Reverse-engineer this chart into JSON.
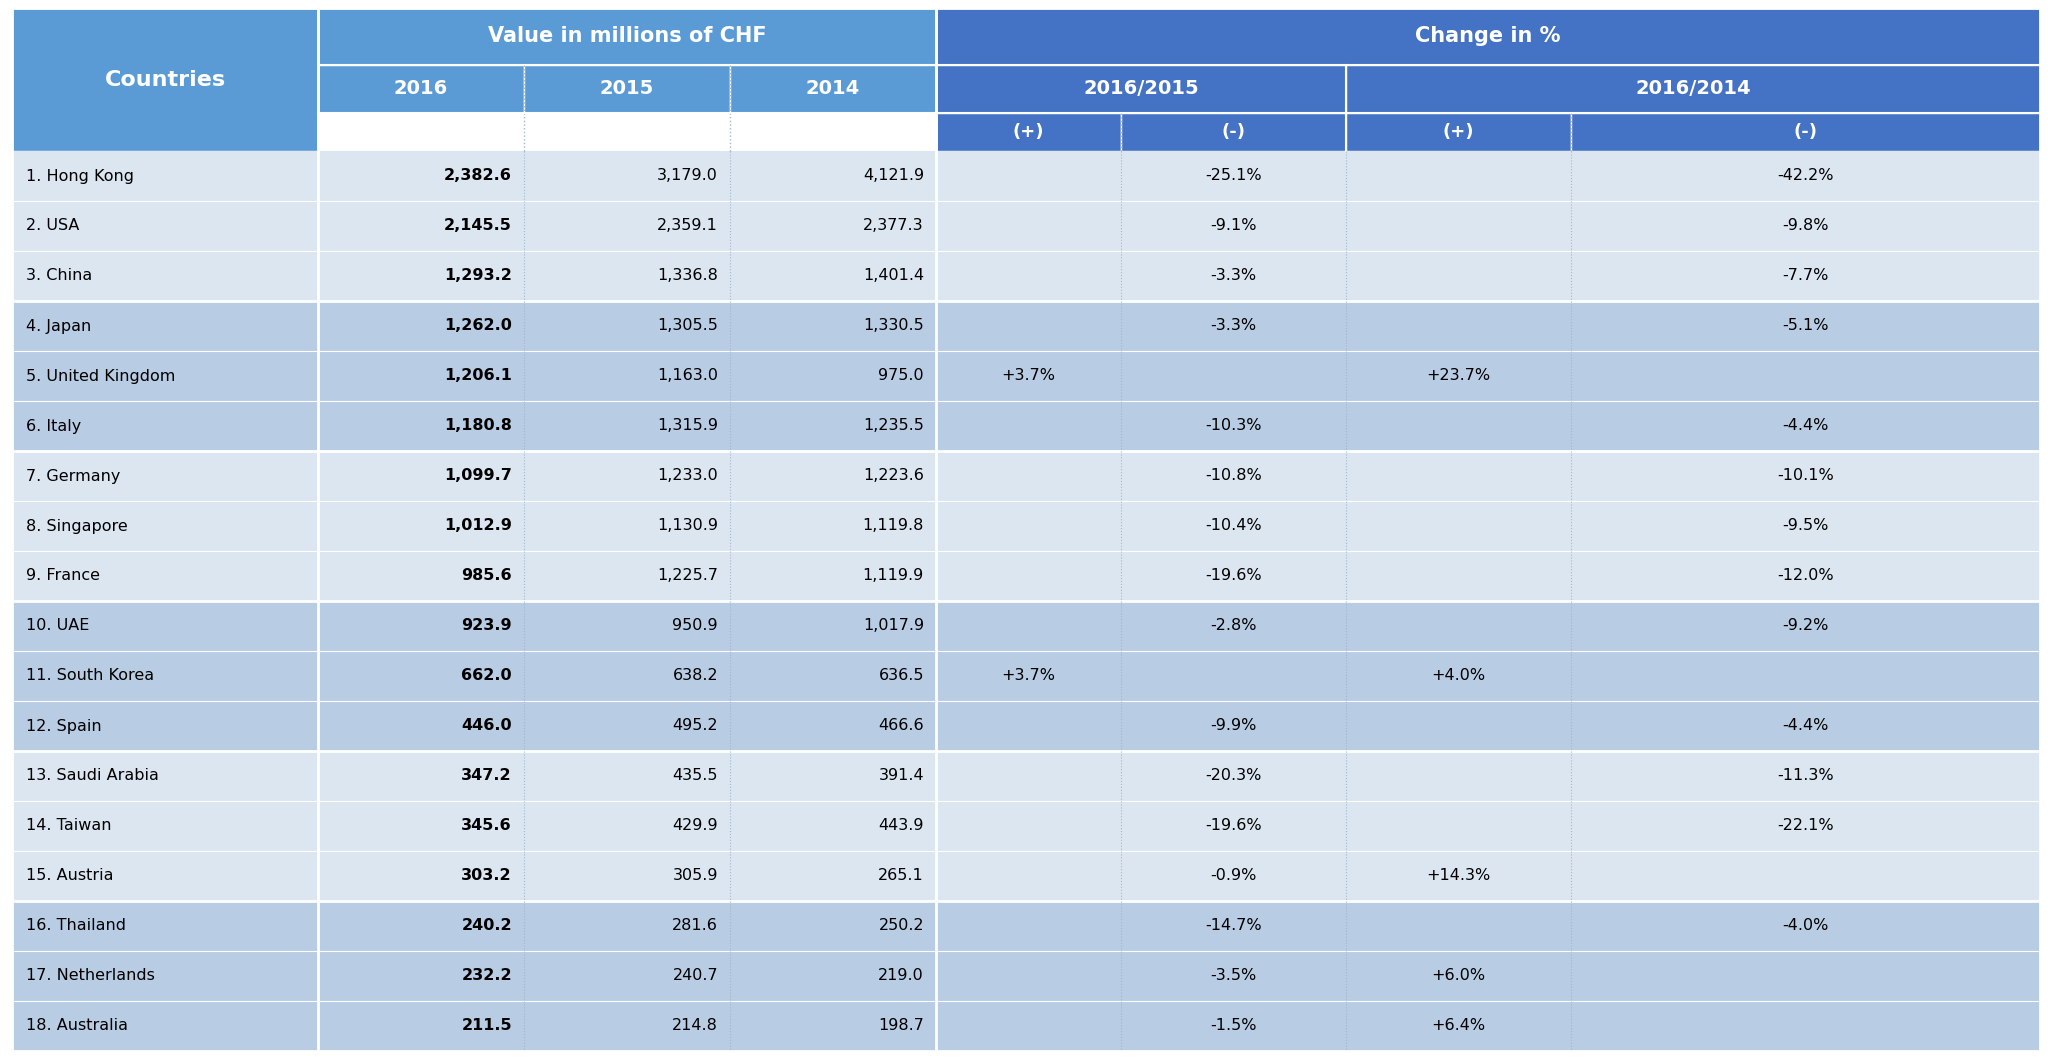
{
  "rows": [
    {
      "country": "1. Hong Kong",
      "v2016": "2,382.6",
      "v2015": "3,179.0",
      "v2014": "4,121.9",
      "ch15_pos": "",
      "ch15_neg": "-25.1%",
      "ch14_pos": "",
      "ch14_neg": "-42.2%",
      "group": 0
    },
    {
      "country": "2. USA",
      "v2016": "2,145.5",
      "v2015": "2,359.1",
      "v2014": "2,377.3",
      "ch15_pos": "",
      "ch15_neg": "-9.1%",
      "ch14_pos": "",
      "ch14_neg": "-9.8%",
      "group": 0
    },
    {
      "country": "3. China",
      "v2016": "1,293.2",
      "v2015": "1,336.8",
      "v2014": "1,401.4",
      "ch15_pos": "",
      "ch15_neg": "-3.3%",
      "ch14_pos": "",
      "ch14_neg": "-7.7%",
      "group": 0
    },
    {
      "country": "4. Japan",
      "v2016": "1,262.0",
      "v2015": "1,305.5",
      "v2014": "1,330.5",
      "ch15_pos": "",
      "ch15_neg": "-3.3%",
      "ch14_pos": "",
      "ch14_neg": "-5.1%",
      "group": 1
    },
    {
      "country": "5. United Kingdom",
      "v2016": "1,206.1",
      "v2015": "1,163.0",
      "v2014": "975.0",
      "ch15_pos": "+3.7%",
      "ch15_neg": "",
      "ch14_pos": "+23.7%",
      "ch14_neg": "",
      "group": 1
    },
    {
      "country": "6. Italy",
      "v2016": "1,180.8",
      "v2015": "1,315.9",
      "v2014": "1,235.5",
      "ch15_pos": "",
      "ch15_neg": "-10.3%",
      "ch14_pos": "",
      "ch14_neg": "-4.4%",
      "group": 1
    },
    {
      "country": "7. Germany",
      "v2016": "1,099.7",
      "v2015": "1,233.0",
      "v2014": "1,223.6",
      "ch15_pos": "",
      "ch15_neg": "-10.8%",
      "ch14_pos": "",
      "ch14_neg": "-10.1%",
      "group": 2
    },
    {
      "country": "8. Singapore",
      "v2016": "1,012.9",
      "v2015": "1,130.9",
      "v2014": "1,119.8",
      "ch15_pos": "",
      "ch15_neg": "-10.4%",
      "ch14_pos": "",
      "ch14_neg": "-9.5%",
      "group": 2
    },
    {
      "country": "9. France",
      "v2016": "985.6",
      "v2015": "1,225.7",
      "v2014": "1,119.9",
      "ch15_pos": "",
      "ch15_neg": "-19.6%",
      "ch14_pos": "",
      "ch14_neg": "-12.0%",
      "group": 2
    },
    {
      "country": "10. UAE",
      "v2016": "923.9",
      "v2015": "950.9",
      "v2014": "1,017.9",
      "ch15_pos": "",
      "ch15_neg": "-2.8%",
      "ch14_pos": "",
      "ch14_neg": "-9.2%",
      "group": 3
    },
    {
      "country": "11. South Korea",
      "v2016": "662.0",
      "v2015": "638.2",
      "v2014": "636.5",
      "ch15_pos": "+3.7%",
      "ch15_neg": "",
      "ch14_pos": "+4.0%",
      "ch14_neg": "",
      "group": 3
    },
    {
      "country": "12. Spain",
      "v2016": "446.0",
      "v2015": "495.2",
      "v2014": "466.6",
      "ch15_pos": "",
      "ch15_neg": "-9.9%",
      "ch14_pos": "",
      "ch14_neg": "-4.4%",
      "group": 3
    },
    {
      "country": "13. Saudi Arabia",
      "v2016": "347.2",
      "v2015": "435.5",
      "v2014": "391.4",
      "ch15_pos": "",
      "ch15_neg": "-20.3%",
      "ch14_pos": "",
      "ch14_neg": "-11.3%",
      "group": 4
    },
    {
      "country": "14. Taiwan",
      "v2016": "345.6",
      "v2015": "429.9",
      "v2014": "443.9",
      "ch15_pos": "",
      "ch15_neg": "-19.6%",
      "ch14_pos": "",
      "ch14_neg": "-22.1%",
      "group": 4
    },
    {
      "country": "15. Austria",
      "v2016": "303.2",
      "v2015": "305.9",
      "v2014": "265.1",
      "ch15_pos": "",
      "ch15_neg": "-0.9%",
      "ch14_pos": "+14.3%",
      "ch14_neg": "",
      "group": 4
    },
    {
      "country": "16. Thailand",
      "v2016": "240.2",
      "v2015": "281.6",
      "v2014": "250.2",
      "ch15_pos": "",
      "ch15_neg": "-14.7%",
      "ch14_pos": "",
      "ch14_neg": "-4.0%",
      "group": 5
    },
    {
      "country": "17. Netherlands",
      "v2016": "232.2",
      "v2015": "240.7",
      "v2014": "219.0",
      "ch15_pos": "",
      "ch15_neg": "-3.5%",
      "ch14_pos": "+6.0%",
      "ch14_neg": "",
      "group": 5
    },
    {
      "country": "18. Australia",
      "v2016": "211.5",
      "v2015": "214.8",
      "v2014": "198.7",
      "ch15_pos": "",
      "ch15_neg": "-1.5%",
      "ch14_pos": "+6.4%",
      "ch14_neg": "",
      "group": 5
    }
  ],
  "group_colors": [
    "#dce6f1",
    "#b8cce4",
    "#dce6f1",
    "#b8cce4",
    "#dce6f1",
    "#b8cce4"
  ],
  "header_color_dark": "#4472c4",
  "header_color_mid": "#5b9bd5",
  "header_color_light": "#5b9bd5",
  "header_text_color": "#ffffff",
  "sep_color_thick": "#ffffff",
  "sep_color_dotted": "#a0b8d0",
  "text_color": "#000000",
  "fig_bg": "#ffffff"
}
